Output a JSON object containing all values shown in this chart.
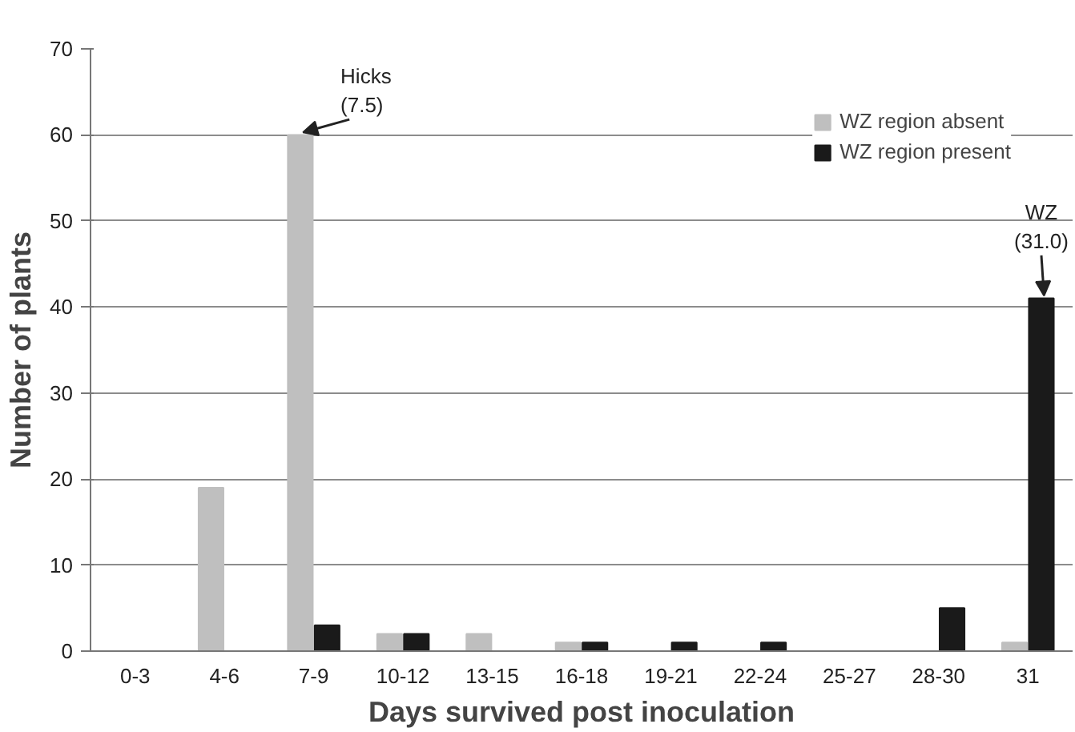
{
  "chart_data": {
    "type": "bar",
    "xlabel": "Days survived post inoculation",
    "ylabel": "Number of plants",
    "categories": [
      "0-3",
      "4-6",
      "7-9",
      "10-12",
      "13-15",
      "16-18",
      "19-21",
      "22-24",
      "25-27",
      "28-30",
      "31"
    ],
    "series": [
      {
        "name": "WZ region absent",
        "color": "#bfbfbf",
        "values": [
          0,
          19,
          60,
          2,
          2,
          1,
          0,
          0,
          0,
          0,
          1
        ]
      },
      {
        "name": "WZ region present",
        "color": "#1a1a1a",
        "values": [
          0,
          0,
          3,
          2,
          0,
          1,
          1,
          1,
          0,
          5,
          41
        ]
      }
    ],
    "ylim": [
      0,
      70
    ],
    "yticks": [
      0,
      10,
      20,
      30,
      40,
      50,
      60,
      70
    ],
    "grid": "y",
    "legend": "top right",
    "annotations": [
      {
        "text": "Hicks\n(7.5)",
        "x": "7-9",
        "y": 60
      },
      {
        "text": "WZ\n(31.0)",
        "x": "31",
        "y": 41
      }
    ]
  }
}
